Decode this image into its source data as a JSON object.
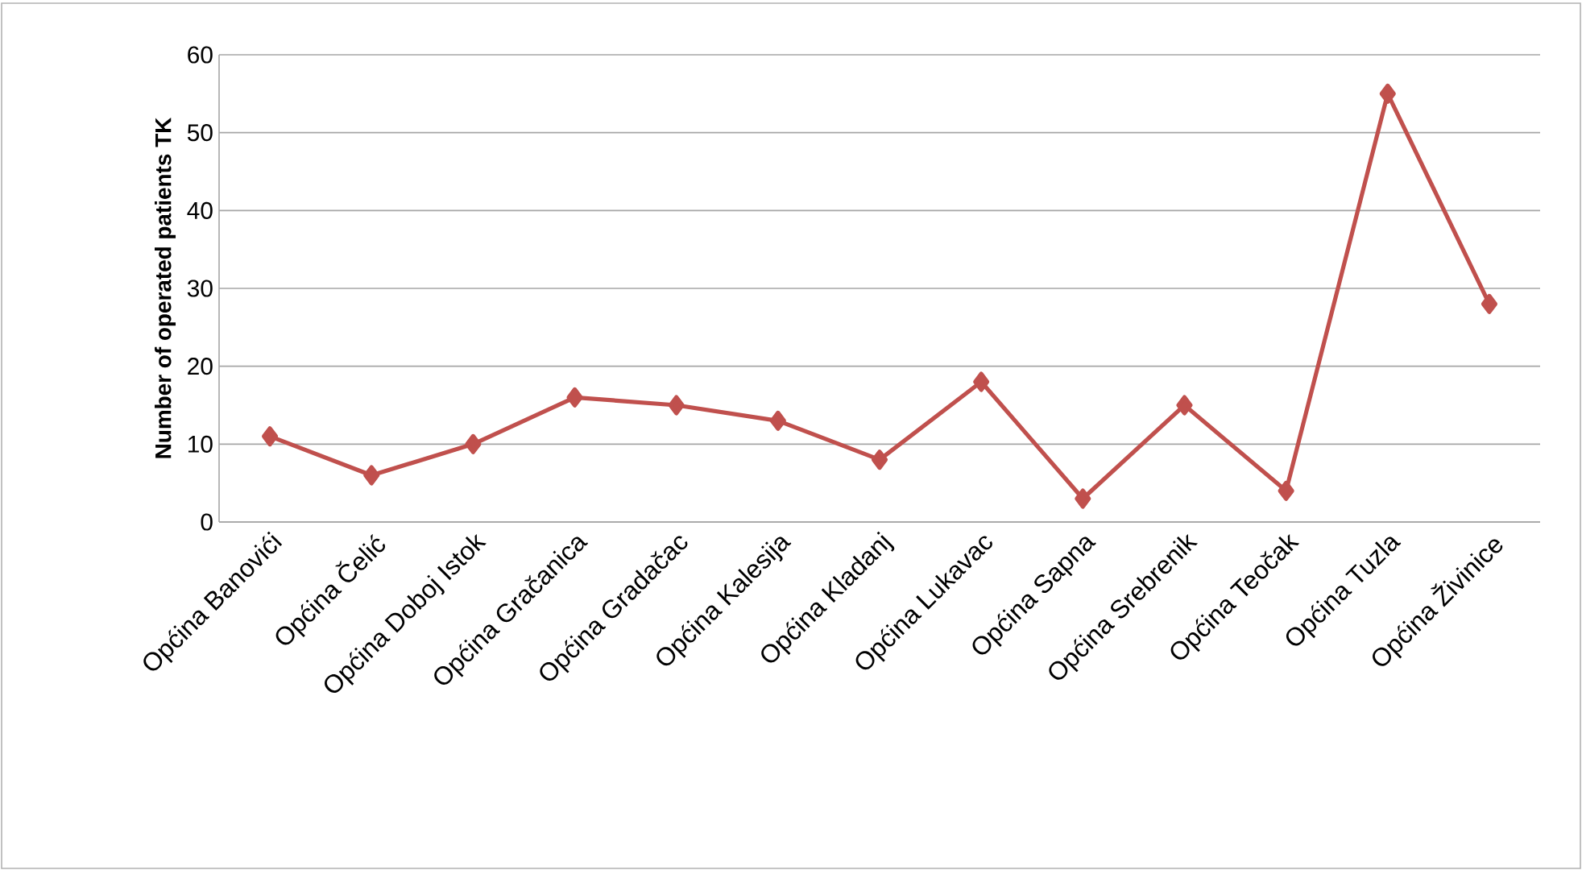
{
  "chart_data": {
    "type": "line",
    "ylabel": "Number of operated patients TK",
    "categories": [
      "Općina Banovići",
      "Općina Čelić",
      "Općina Doboj Istok",
      "Općina Gračanica",
      "Općina Gradačac",
      "Općina Kalesija",
      "Općina Kladanj",
      "Općina Lukavac",
      "Općina Sapna",
      "Općina Srebrenik",
      "Općina Teočak",
      "Općina Tuzla",
      "Općina Živinice"
    ],
    "series": [
      {
        "color": "#c0504d",
        "values": [
          11,
          6,
          10,
          16,
          15,
          13,
          8,
          18,
          3,
          15,
          4,
          55,
          28
        ]
      }
    ],
    "ylim": [
      0,
      60
    ],
    "yticks": [
      0,
      10,
      20,
      30,
      40,
      50,
      60
    ],
    "grid": "y",
    "marker": "diamond",
    "line_style": "solid"
  }
}
